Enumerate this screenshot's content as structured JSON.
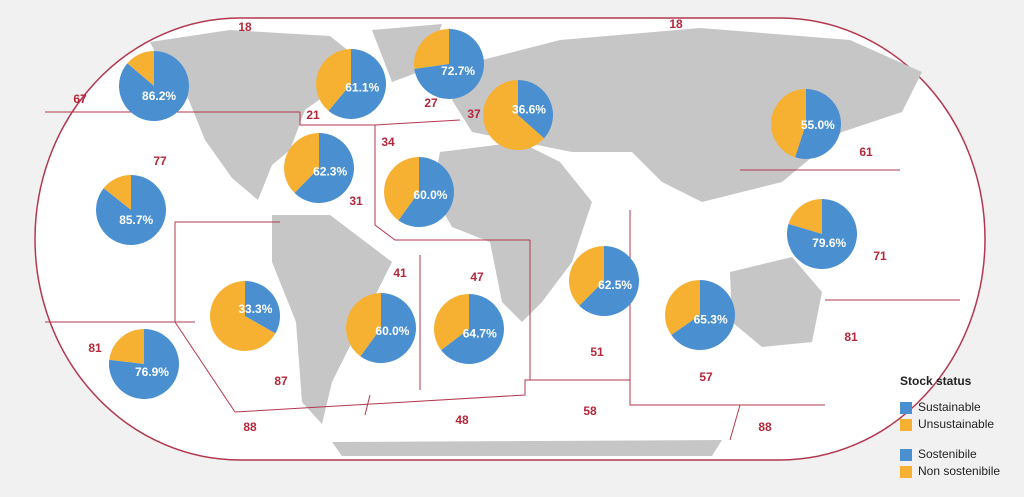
{
  "map": {
    "area_labels": [
      "18",
      "18",
      "67",
      "21",
      "27",
      "37",
      "34",
      "77",
      "31",
      "61",
      "71",
      "41",
      "47",
      "81",
      "87",
      "51",
      "57",
      "81",
      "88",
      "48",
      "58",
      "88"
    ],
    "pies": {
      "values": [
        86.2,
        61.1,
        72.7,
        36.6,
        55.0,
        62.3,
        60.0,
        85.7,
        79.6,
        62.5,
        33.3,
        60.0,
        64.7,
        65.3,
        76.9
      ],
      "value_labels": [
        "86.2%",
        "61.1%",
        "72.7%",
        "36.6%",
        "55.0%",
        "62.3%",
        "60.0%",
        "85.7%",
        "79.6%",
        "62.5%",
        "33.3%",
        "60.0%",
        "64.7%",
        "65.3%",
        "76.9%"
      ]
    }
  },
  "legend": {
    "title": "Stock status",
    "items": [
      {
        "label": "Sustainable",
        "color": "#4a8fd0"
      },
      {
        "label": "Unsustainable",
        "color": "#f6b133"
      },
      {
        "label": "Sostenibile",
        "color": "#4a8fd0"
      },
      {
        "label": "Non sostenibile",
        "color": "#f6b133"
      }
    ]
  }
}
